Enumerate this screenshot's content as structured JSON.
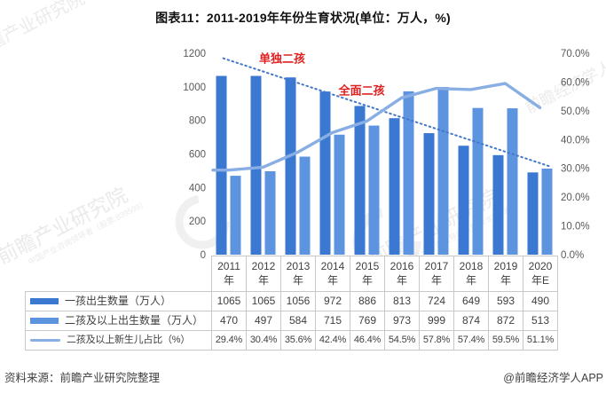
{
  "title": "图表11：2011-2019年年份生育状况(单位：万人，%)",
  "chart_data": {
    "type": "bar",
    "subtype": "grouped-bar-with-line",
    "categories": [
      "2011年",
      "2012年",
      "2013年",
      "2014年",
      "2015年",
      "2016年",
      "2017年",
      "2018年",
      "2019年",
      "2020年E"
    ],
    "series": [
      {
        "name": "一孩出生数量（万人）",
        "type": "bar",
        "axis": "left",
        "color": "#3a78d2",
        "values": [
          1065,
          1065,
          1056,
          972,
          886,
          813,
          724,
          649,
          593,
          490
        ]
      },
      {
        "name": "二孩及以上出生数量（万人）",
        "type": "bar",
        "axis": "left",
        "color": "#5d94df",
        "values": [
          470,
          497,
          584,
          715,
          769,
          973,
          999,
          874,
          872,
          513
        ]
      },
      {
        "name": "二孩及以上新生儿占比（%）",
        "type": "line",
        "axis": "right",
        "color": "#88aee4",
        "values": [
          29.4,
          30.4,
          35.6,
          42.4,
          46.4,
          54.5,
          57.8,
          57.4,
          59.5,
          51.1
        ]
      }
    ],
    "left_axis": {
      "min": 0,
      "max": 1200,
      "step": 200
    },
    "right_axis": {
      "min": 0,
      "max": 70,
      "step": 10,
      "decimals": 1,
      "suffix": "%"
    },
    "grid": false,
    "legend_position": "data-table-left-column",
    "annotations": [
      {
        "text": "单独二孩",
        "xi": 1.55,
        "value": 1165,
        "color": "#e02020"
      },
      {
        "text": "全面二孩",
        "xi": 3.85,
        "value": 975,
        "color": "#e02020"
      }
    ],
    "trendline": {
      "x1i": -0.15,
      "v1": 1170,
      "x2i": 9.3,
      "v2": 525,
      "color": "#4477cc",
      "style": "dotted"
    }
  },
  "table": {
    "columns": [
      [
        "2011",
        "年"
      ],
      [
        "2012",
        "年"
      ],
      [
        "2013",
        "年"
      ],
      [
        "2014",
        "年"
      ],
      [
        "2015",
        "年"
      ],
      [
        "2016",
        "年"
      ],
      [
        "2017",
        "年"
      ],
      [
        "2018",
        "年"
      ],
      [
        "2019",
        "年"
      ],
      [
        "2020",
        "年E"
      ]
    ],
    "rows": [
      {
        "label": "一孩出生数量（万人）",
        "swatch": "bar",
        "series_index": 0,
        "values": [
          "1065",
          "1065",
          "1056",
          "972",
          "886",
          "813",
          "724",
          "649",
          "593",
          "490"
        ]
      },
      {
        "label": "二孩及以上出生数量（万人）",
        "swatch": "bar",
        "series_index": 1,
        "values": [
          "470",
          "497",
          "584",
          "715",
          "769",
          "973",
          "999",
          "874",
          "872",
          "513"
        ]
      },
      {
        "label": "二孩及以上新生儿占比（%）",
        "swatch": "line",
        "series_index": 2,
        "values": [
          "29.4%",
          "30.4%",
          "35.6%",
          "42.4%",
          "46.4%",
          "54.5%",
          "57.8%",
          "57.4%",
          "59.5%",
          "51.1%"
        ]
      }
    ]
  },
  "footer": {
    "source": "资料来源：前瞻产业研究院整理",
    "credit": "@前瞻经济学人APP"
  },
  "watermarks": {
    "main": "前瞻产业研究院",
    "sub": "中国产业咨询领导者（股票:839599）",
    "alt": "前瞻经济学人"
  }
}
